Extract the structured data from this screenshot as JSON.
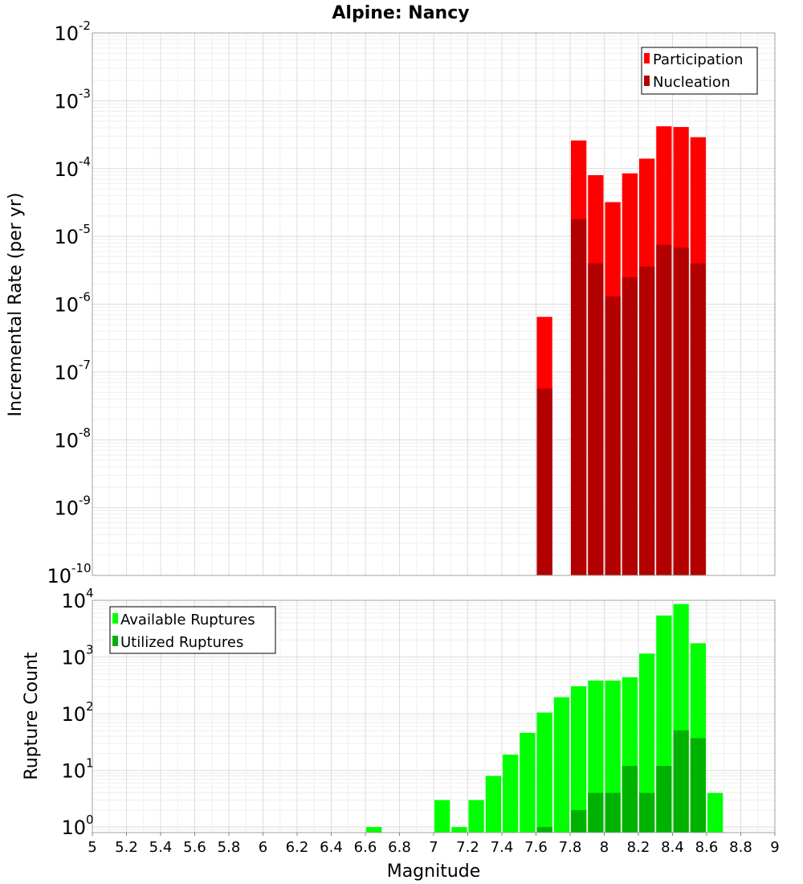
{
  "chart_data": [
    {
      "type": "bar",
      "title": "Alpine: Nancy",
      "xlabel": "",
      "ylabel": "Incremental Rate (per yr)",
      "yscale": "log",
      "ylim": [
        1e-10,
        0.01
      ],
      "xlim": [
        5,
        9
      ],
      "y_tick_bases": [
        "10",
        "10",
        "10",
        "10",
        "10",
        "10",
        "10",
        "10",
        "10"
      ],
      "y_tick_exponents": [
        "-10",
        "-9",
        "-8",
        "-7",
        "-6",
        "-5",
        "-4",
        "-3",
        "-2"
      ],
      "legend": {
        "placement": "top-right",
        "entries": [
          "Participation",
          "Nucleation"
        ]
      },
      "colors": {
        "Participation": "#ff0000",
        "Nucleation": "#b20000"
      },
      "bin_width": 0.1,
      "x": [
        7.65,
        7.85,
        7.95,
        8.05,
        8.15,
        8.25,
        8.35,
        8.45,
        8.55
      ],
      "series": [
        {
          "name": "Participation",
          "values": [
            6.5e-07,
            0.00026,
            8e-05,
            3.2e-05,
            8.5e-05,
            0.00014,
            0.00042,
            0.00041,
            0.00029
          ]
        },
        {
          "name": "Nucleation",
          "values": [
            5.7e-08,
            1.8e-05,
            4e-06,
            1.3e-06,
            2.5e-06,
            3.6e-06,
            7.5e-06,
            6.8e-06,
            4e-06
          ]
        }
      ]
    },
    {
      "type": "bar",
      "title": "",
      "xlabel": "Magnitude",
      "ylabel": "Rupture Count",
      "yscale": "log",
      "ylim": [
        0.8,
        10000
      ],
      "xlim": [
        5,
        9
      ],
      "x_ticks": [
        "5",
        "5.2",
        "5.4",
        "5.6",
        "5.8",
        "6",
        "6.2",
        "6.4",
        "6.6",
        "6.8",
        "7",
        "7.2",
        "7.4",
        "7.6",
        "7.8",
        "8",
        "8.2",
        "8.4",
        "8.6",
        "8.8",
        "9"
      ],
      "y_tick_bases": [
        "10",
        "10",
        "10",
        "10",
        "10"
      ],
      "y_tick_exponents": [
        "0",
        "1",
        "2",
        "3",
        "4"
      ],
      "legend": {
        "placement": "top-left",
        "entries": [
          "Available Ruptures",
          "Utilized Ruptures"
        ]
      },
      "colors": {
        "Available Ruptures": "#00ff00",
        "Utilized Ruptures": "#00b200"
      },
      "bin_width": 0.1,
      "x": [
        6.65,
        7.05,
        7.15,
        7.25,
        7.35,
        7.45,
        7.55,
        7.65,
        7.75,
        7.85,
        7.95,
        8.05,
        8.15,
        8.25,
        8.35,
        8.45,
        8.55,
        8.65
      ],
      "series": [
        {
          "name": "Available Ruptures",
          "values": [
            1,
            3,
            1,
            3,
            8,
            19,
            46,
            105,
            195,
            305,
            385,
            385,
            440,
            1150,
            5400,
            8600,
            1750,
            4
          ]
        },
        {
          "name": "Utilized Ruptures",
          "values": [
            0,
            0,
            0,
            0,
            0,
            0,
            0,
            1,
            0,
            2,
            4,
            4,
            12,
            4,
            12,
            51,
            37,
            0
          ]
        }
      ]
    }
  ]
}
